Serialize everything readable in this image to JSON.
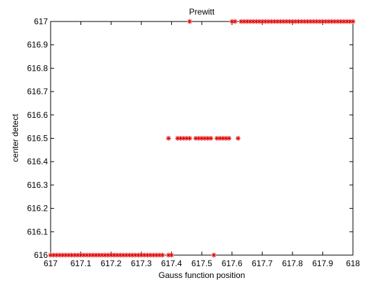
{
  "chart_data": {
    "type": "scatter",
    "title": "Prewitt",
    "xlabel": "Gauss function position",
    "ylabel": "center detect",
    "xlim": [
      617,
      618
    ],
    "ylim": [
      616,
      617
    ],
    "xticks": [
      617,
      617.1,
      617.2,
      617.3,
      617.4,
      617.5,
      617.6,
      617.7,
      617.8,
      617.9,
      618
    ],
    "xtick_labels": [
      "617",
      "617.1",
      "617.2",
      "617.3",
      "617.4",
      "617.5",
      "617.6",
      "617.7",
      "617.8",
      "617.9",
      "618"
    ],
    "yticks": [
      616,
      616.1,
      616.2,
      616.3,
      616.4,
      616.5,
      616.6,
      616.7,
      616.8,
      616.9,
      617
    ],
    "ytick_labels": [
      "616",
      "616.1",
      "616.2",
      "616.3",
      "616.4",
      "616.5",
      "616.6",
      "616.7",
      "616.8",
      "616.9",
      "617"
    ],
    "grid": false,
    "marker": "asterisk",
    "marker_color": "#e00000",
    "series": [
      {
        "points": [
          [
            617.0,
            616
          ],
          [
            617.01,
            616
          ],
          [
            617.02,
            616
          ],
          [
            617.03,
            616
          ],
          [
            617.04,
            616
          ],
          [
            617.05,
            616
          ],
          [
            617.06,
            616
          ],
          [
            617.07,
            616
          ],
          [
            617.08,
            616
          ],
          [
            617.09,
            616
          ],
          [
            617.1,
            616
          ],
          [
            617.11,
            616
          ],
          [
            617.12,
            616
          ],
          [
            617.13,
            616
          ],
          [
            617.14,
            616
          ],
          [
            617.15,
            616
          ],
          [
            617.16,
            616
          ],
          [
            617.17,
            616
          ],
          [
            617.18,
            616
          ],
          [
            617.19,
            616
          ],
          [
            617.2,
            616
          ],
          [
            617.21,
            616
          ],
          [
            617.22,
            616
          ],
          [
            617.23,
            616
          ],
          [
            617.24,
            616
          ],
          [
            617.25,
            616
          ],
          [
            617.26,
            616
          ],
          [
            617.27,
            616
          ],
          [
            617.28,
            616
          ],
          [
            617.29,
            616
          ],
          [
            617.3,
            616
          ],
          [
            617.31,
            616
          ],
          [
            617.32,
            616
          ],
          [
            617.33,
            616
          ],
          [
            617.34,
            616
          ],
          [
            617.35,
            616
          ],
          [
            617.36,
            616
          ],
          [
            617.37,
            616
          ],
          [
            617.39,
            616
          ],
          [
            617.4,
            616
          ],
          [
            617.54,
            616
          ],
          [
            617.39,
            616.5
          ],
          [
            617.42,
            616.5
          ],
          [
            617.43,
            616.5
          ],
          [
            617.44,
            616.5
          ],
          [
            617.45,
            616.5
          ],
          [
            617.46,
            616.5
          ],
          [
            617.48,
            616.5
          ],
          [
            617.49,
            616.5
          ],
          [
            617.5,
            616.5
          ],
          [
            617.51,
            616.5
          ],
          [
            617.52,
            616.5
          ],
          [
            617.53,
            616.5
          ],
          [
            617.55,
            616.5
          ],
          [
            617.56,
            616.5
          ],
          [
            617.57,
            616.5
          ],
          [
            617.58,
            616.5
          ],
          [
            617.59,
            616.5
          ],
          [
            617.62,
            616.5
          ],
          [
            617.46,
            617
          ],
          [
            617.6,
            617
          ],
          [
            617.61,
            617
          ],
          [
            617.63,
            617
          ],
          [
            617.64,
            617
          ],
          [
            617.65,
            617
          ],
          [
            617.66,
            617
          ],
          [
            617.67,
            617
          ],
          [
            617.68,
            617
          ],
          [
            617.69,
            617
          ],
          [
            617.7,
            617
          ],
          [
            617.71,
            617
          ],
          [
            617.72,
            617
          ],
          [
            617.73,
            617
          ],
          [
            617.74,
            617
          ],
          [
            617.75,
            617
          ],
          [
            617.76,
            617
          ],
          [
            617.77,
            617
          ],
          [
            617.78,
            617
          ],
          [
            617.79,
            617
          ],
          [
            617.8,
            617
          ],
          [
            617.81,
            617
          ],
          [
            617.82,
            617
          ],
          [
            617.83,
            617
          ],
          [
            617.84,
            617
          ],
          [
            617.85,
            617
          ],
          [
            617.86,
            617
          ],
          [
            617.87,
            617
          ],
          [
            617.88,
            617
          ],
          [
            617.89,
            617
          ],
          [
            617.9,
            617
          ],
          [
            617.91,
            617
          ],
          [
            617.92,
            617
          ],
          [
            617.93,
            617
          ],
          [
            617.94,
            617
          ],
          [
            617.95,
            617
          ],
          [
            617.96,
            617
          ],
          [
            617.97,
            617
          ],
          [
            617.98,
            617
          ],
          [
            617.99,
            617
          ],
          [
            618.0,
            617
          ]
        ]
      }
    ]
  }
}
